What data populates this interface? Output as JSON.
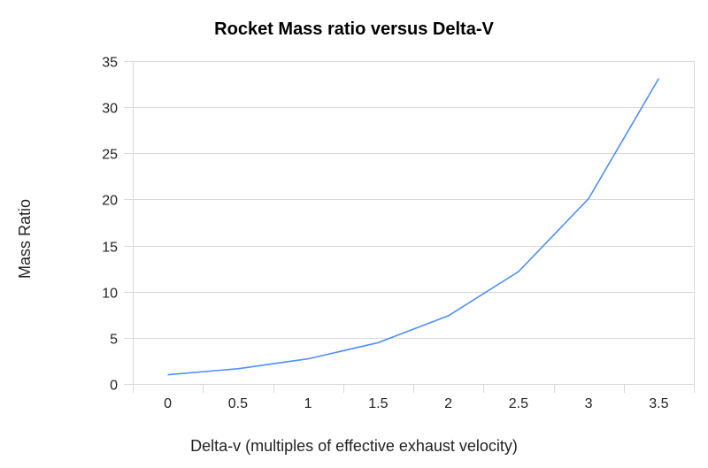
{
  "chart_data": {
    "type": "line",
    "title": "Rocket Mass ratio versus Delta-V",
    "xlabel": "Delta-v (multiples of effective exhaust velocity)",
    "ylabel": "Mass Ratio",
    "categories": [
      "0",
      "0.5",
      "1",
      "1.5",
      "2",
      "2.5",
      "3",
      "3.5"
    ],
    "values": [
      1.0,
      1.65,
      2.72,
      4.48,
      7.39,
      12.18,
      20.09,
      33.12
    ],
    "ylim": [
      0,
      35
    ],
    "yticks": [
      "0",
      "5",
      "10",
      "15",
      "20",
      "25",
      "30",
      "35"
    ],
    "grid": true,
    "legend": "none",
    "line_color": "#4f8ef7"
  }
}
